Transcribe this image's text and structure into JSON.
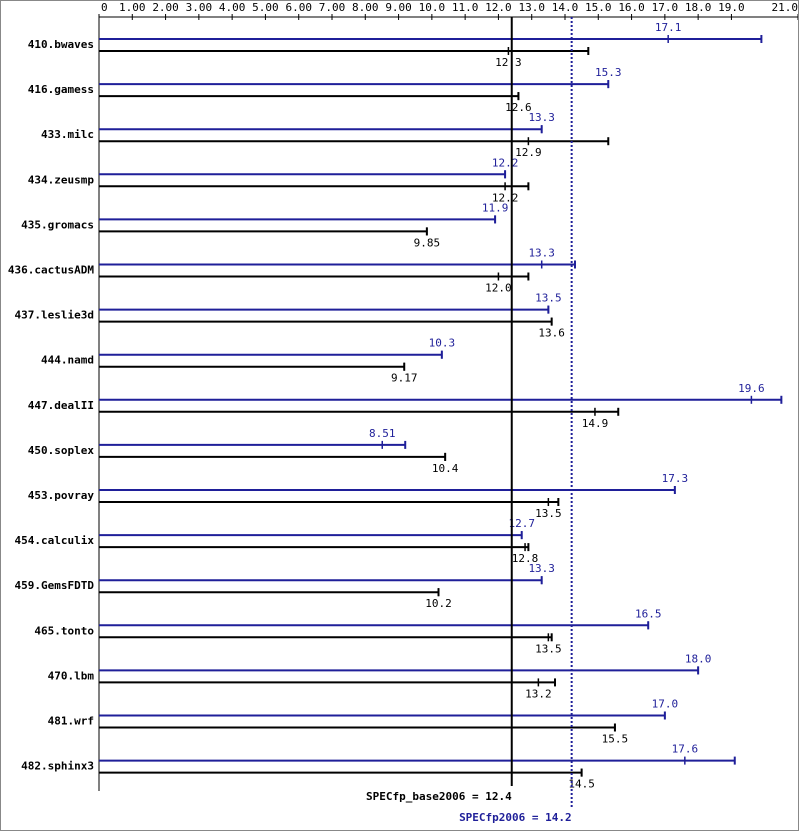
{
  "chart_data": {
    "type": "bar",
    "orientation": "horizontal",
    "categories": [
      "410.bwaves",
      "416.gamess",
      "433.milc",
      "434.zeusmp",
      "435.gromacs",
      "436.cactusADM",
      "437.leslie3d",
      "444.namd",
      "447.dealII",
      "450.soplex",
      "453.povray",
      "454.calculix",
      "459.GemsFDTD",
      "465.tonto",
      "470.lbm",
      "481.wrf",
      "482.sphinx3"
    ],
    "series": [
      {
        "color": "#1f1f99",
        "values": [
          17.1,
          15.3,
          13.3,
          12.2,
          11.9,
          13.3,
          13.5,
          10.3,
          19.6,
          8.51,
          17.3,
          12.7,
          13.3,
          16.5,
          18.0,
          17.0,
          17.6
        ],
        "value_labels": [
          "17.1",
          "15.3",
          "13.3",
          "12.2",
          "11.9",
          "13.3",
          "13.5",
          "10.3",
          "19.6",
          "8.51",
          "17.3",
          "12.7",
          "13.3",
          "16.5",
          "18.0",
          "17.0",
          "17.6"
        ],
        "max": [
          19.9,
          15.3,
          13.3,
          12.2,
          11.9,
          14.3,
          13.5,
          10.3,
          20.5,
          9.2,
          17.3,
          12.7,
          13.3,
          16.5,
          18.0,
          17.0,
          19.1
        ]
      },
      {
        "color": "#000000",
        "values": [
          12.3,
          12.6,
          12.9,
          12.2,
          9.85,
          12.0,
          13.6,
          9.17,
          14.9,
          10.4,
          13.5,
          12.8,
          10.2,
          13.5,
          13.2,
          15.5,
          14.5
        ],
        "value_labels": [
          "12.3",
          "12.6",
          "12.9",
          "12.2",
          "9.85",
          "12.0",
          "13.6",
          "9.17",
          "14.9",
          "10.4",
          "13.5",
          "12.8",
          "10.2",
          "13.5",
          "13.2",
          "15.5",
          "14.5"
        ],
        "max": [
          14.7,
          12.6,
          15.3,
          12.9,
          9.85,
          12.9,
          13.6,
          9.17,
          15.6,
          10.4,
          13.8,
          12.9,
          10.2,
          13.6,
          13.7,
          15.5,
          14.5
        ]
      }
    ],
    "xlim": [
      0,
      21
    ],
    "xticks": [
      0,
      {
        "value": 1,
        "label": "1.00"
      },
      {
        "value": 2,
        "label": "2.00"
      },
      {
        "value": 3,
        "label": "3.00"
      },
      {
        "value": 4,
        "label": "4.00"
      },
      {
        "value": 5,
        "label": "5.00"
      },
      {
        "value": 6,
        "label": "6.00"
      },
      {
        "value": 7,
        "label": "7.00"
      },
      {
        "value": 8,
        "label": "8.00"
      },
      {
        "value": 9,
        "label": "9.00"
      },
      {
        "value": 10,
        "label": "10.0"
      },
      {
        "value": 11,
        "label": "11.0"
      },
      {
        "value": 12,
        "label": "12.0"
      },
      {
        "value": 13,
        "label": "13.0"
      },
      {
        "value": 14,
        "label": "14.0"
      },
      {
        "value": 15,
        "label": "15.0"
      },
      {
        "value": 16,
        "label": "16.0"
      },
      {
        "value": 17,
        "label": "17.0"
      },
      {
        "value": 18,
        "label": "18.0"
      },
      {
        "value": 19,
        "label": "19.0"
      },
      {
        "value": 21,
        "label": "21.0"
      }
    ],
    "reference_lines": [
      {
        "value": 12.4,
        "label": "SPECfp_base2006 = 12.4",
        "color": "#000000",
        "style": "solid"
      },
      {
        "value": 14.2,
        "label": "SPECfp2006 = 14.2",
        "color": "#1f1f99",
        "style": "dotted"
      }
    ]
  }
}
